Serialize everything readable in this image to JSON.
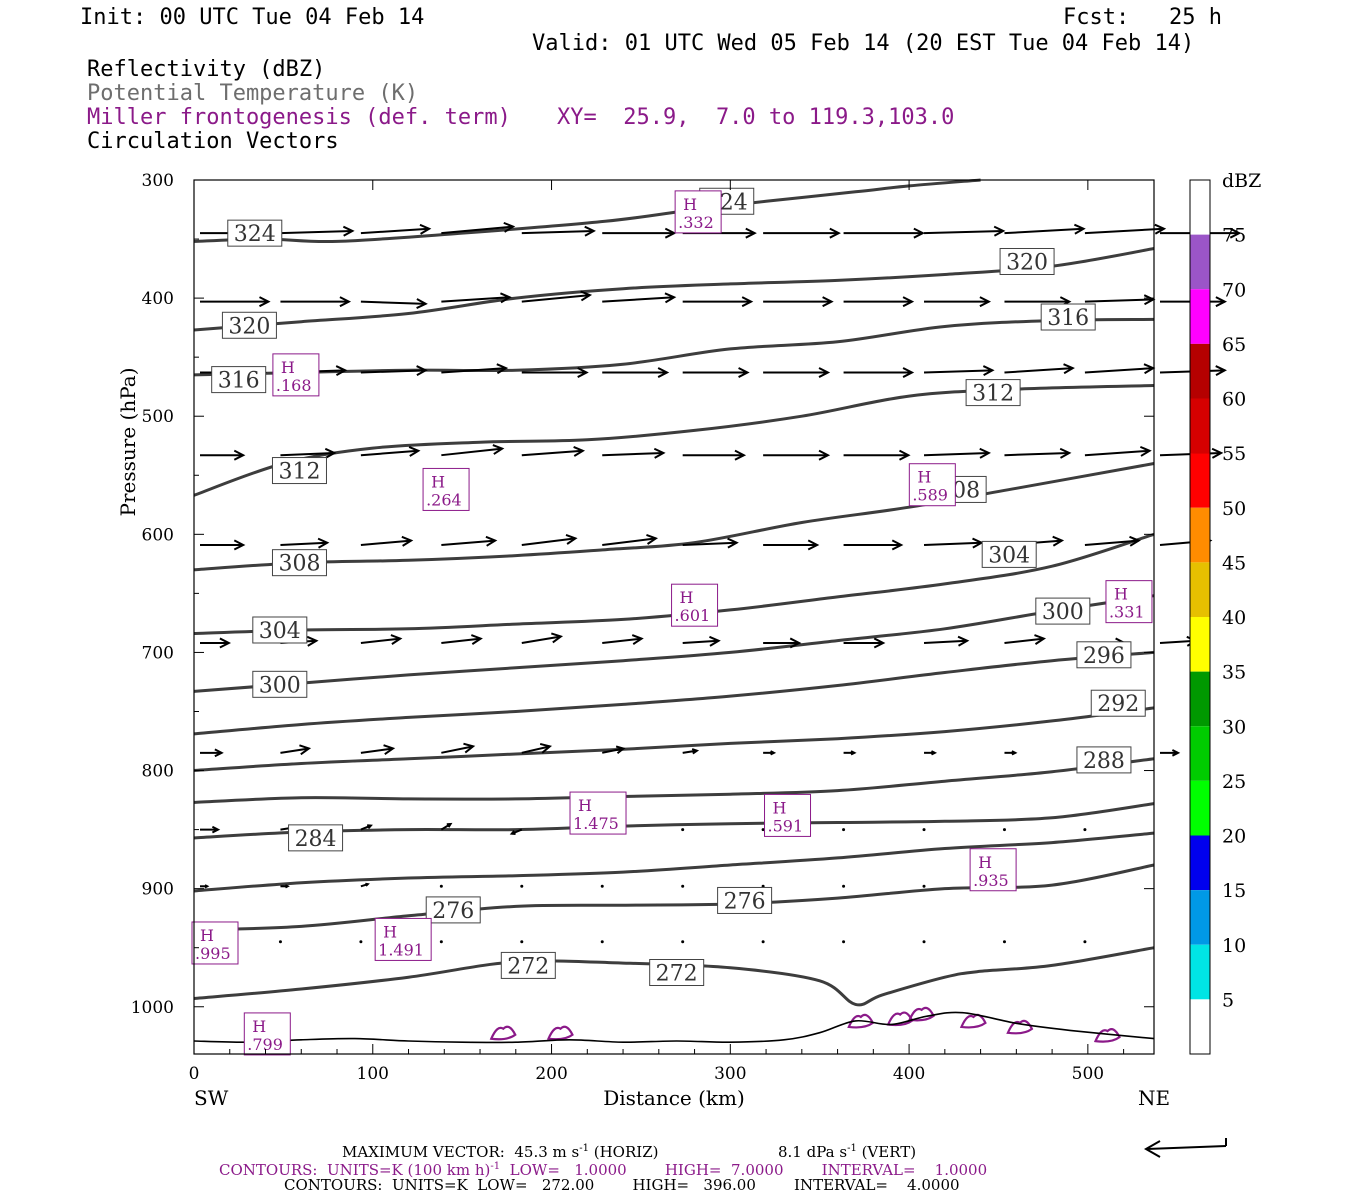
{
  "header": {
    "init": "Init: 00 UTC Tue 04 Feb 14",
    "fcst": "Fcst:   25 h",
    "valid": "Valid: 01 UTC Wed 05 Feb 14 (20 EST Tue 04 Feb 14)",
    "fields": [
      {
        "label": "Reflectivity (dBZ)"
      },
      {
        "label": "Potential Temperature (K)"
      },
      {
        "label": "Miller frontogenesis (def. term)"
      },
      {
        "label": "Circulation Vectors"
      }
    ],
    "xy": "XY=  25.9,  7.0 to 119.3,103.0"
  },
  "colors": {
    "theta": "#3d3d3d",
    "frontogenesis": "#8b1a89",
    "vector": "#000000"
  },
  "chart_data": {
    "type": "cross-section",
    "xlabel": "Distance (km)",
    "ylabel": "Pressure (hPa)",
    "xlim": [
      0,
      537
    ],
    "ylim": [
      300,
      1040
    ],
    "x_ticks": [
      "0",
      "100",
      "200",
      "300",
      "400",
      "500"
    ],
    "y_ticks": [
      "300",
      "400",
      "500",
      "600",
      "700",
      "800",
      "900",
      "1000"
    ],
    "x_end_labels": {
      "left": "SW",
      "right": "NE"
    },
    "theta_contours": [
      {
        "value": 324,
        "x": [
          0,
          40,
          80,
          150,
          230,
          280,
          320,
          370,
          400,
          440
        ],
        "p": [
          352,
          350,
          352,
          345,
          335,
          325,
          318,
          310,
          305,
          300
        ]
      },
      {
        "value": 320,
        "x": [
          0,
          60,
          120,
          180,
          240,
          300,
          360,
          420,
          480,
          537
        ],
        "p": [
          427,
          420,
          413,
          400,
          392,
          388,
          385,
          380,
          373,
          358
        ]
      },
      {
        "value": 316,
        "x": [
          0,
          60,
          120,
          180,
          240,
          300,
          360,
          420,
          480,
          537
        ],
        "p": [
          465,
          463,
          461,
          461,
          456,
          443,
          437,
          424,
          419,
          418
        ]
      },
      {
        "value": 312,
        "x": [
          0,
          50,
          100,
          160,
          220,
          280,
          340,
          400,
          460,
          537
        ],
        "p": [
          567,
          540,
          527,
          522,
          520,
          512,
          500,
          483,
          477,
          474
        ]
      },
      {
        "value": 308,
        "x": [
          0,
          60,
          120,
          180,
          230,
          280,
          340,
          400,
          460,
          537
        ],
        "p": [
          630,
          624,
          622,
          618,
          613,
          607,
          590,
          577,
          561,
          540
        ]
      },
      {
        "value": 304,
        "x": [
          0,
          60,
          120,
          180,
          240,
          300,
          360,
          420,
          480,
          537
        ],
        "p": [
          684,
          681,
          680,
          676,
          672,
          664,
          653,
          642,
          627,
          600
        ]
      },
      {
        "value": 300,
        "x": [
          0,
          60,
          120,
          180,
          240,
          300,
          360,
          420,
          480,
          537
        ],
        "p": [
          733,
          726,
          719,
          713,
          707,
          700,
          690,
          680,
          665,
          652
        ]
      },
      {
        "value": 296,
        "x": [
          0,
          60,
          120,
          180,
          240,
          300,
          360,
          420,
          480,
          537
        ],
        "p": [
          769,
          761,
          755,
          750,
          744,
          737,
          728,
          717,
          707,
          700
        ]
      },
      {
        "value": 292,
        "x": [
          0,
          60,
          120,
          180,
          240,
          300,
          360,
          420,
          480,
          537
        ],
        "p": [
          800,
          794,
          790,
          786,
          782,
          777,
          773,
          767,
          758,
          747
        ]
      },
      {
        "value": 288,
        "x": [
          0,
          60,
          120,
          180,
          240,
          300,
          360,
          420,
          480,
          537
        ],
        "p": [
          827,
          823,
          824,
          824,
          822,
          820,
          817,
          809,
          801,
          790
        ]
      },
      {
        "value": 284,
        "x": [
          0,
          60,
          120,
          180,
          240,
          300,
          360,
          420,
          480,
          537
        ],
        "p": [
          857,
          852,
          850,
          850,
          847,
          845,
          844,
          843,
          840,
          828
        ]
      },
      {
        "value": 280,
        "x": [
          0,
          60,
          120,
          180,
          240,
          300,
          360,
          420,
          480,
          537
        ],
        "p": [
          902,
          895,
          891,
          889,
          886,
          880,
          874,
          866,
          861,
          853
        ]
      },
      {
        "value": 276,
        "x": [
          0,
          60,
          120,
          180,
          240,
          300,
          360,
          420,
          480,
          537
        ],
        "p": [
          935,
          932,
          923,
          915,
          914,
          913,
          908,
          900,
          897,
          880
        ]
      },
      {
        "value": 272,
        "x": [
          0,
          60,
          120,
          180,
          240,
          300,
          350,
          370,
          385,
          420,
          440,
          480,
          537
        ],
        "p": [
          993,
          985,
          975,
          962,
          963,
          967,
          978,
          998,
          990,
          975,
          970,
          965,
          950
        ]
      }
    ],
    "theta_labels": [
      {
        "text": "324",
        "x": 34,
        "p": 345
      },
      {
        "text": "324",
        "x": 298,
        "p": 318
      },
      {
        "text": "320",
        "x": 31,
        "p": 423
      },
      {
        "text": "320",
        "x": 466,
        "p": 369
      },
      {
        "text": "316",
        "x": 25,
        "p": 469
      },
      {
        "text": "316",
        "x": 489,
        "p": 416
      },
      {
        "text": "312",
        "x": 59,
        "p": 546
      },
      {
        "text": "312",
        "x": 447,
        "p": 480
      },
      {
        "text": "308",
        "x": 59,
        "p": 624
      },
      {
        "text": "308",
        "x": 428,
        "p": 562
      },
      {
        "text": "304",
        "x": 48,
        "p": 681
      },
      {
        "text": "304",
        "x": 456,
        "p": 617
      },
      {
        "text": "300",
        "x": 48,
        "p": 727
      },
      {
        "text": "300",
        "x": 486,
        "p": 665
      },
      {
        "text": "296",
        "x": 509,
        "p": 702
      },
      {
        "text": "292",
        "x": 517,
        "p": 743
      },
      {
        "text": "288",
        "x": 509,
        "p": 791
      },
      {
        "text": "284",
        "x": 68,
        "p": 857
      },
      {
        "text": "276",
        "x": 145,
        "p": 918
      },
      {
        "text": "276",
        "x": 308,
        "p": 910
      },
      {
        "text": "272",
        "x": 187,
        "p": 965
      },
      {
        "text": "272",
        "x": 270,
        "p": 971
      }
    ],
    "frontogenesis_maxima": [
      {
        "label": "H",
        "value": ".332",
        "x": 282,
        "p": 327
      },
      {
        "label": "H",
        "value": ".168",
        "x": 57,
        "p": 465
      },
      {
        "label": "H",
        "value": ".264",
        "x": 141,
        "p": 562
      },
      {
        "label": "H",
        "value": ".589",
        "x": 413,
        "p": 558
      },
      {
        "label": "H",
        "value": ".601",
        "x": 280,
        "p": 660
      },
      {
        "label": "H",
        "value": ".331",
        "x": 523,
        "p": 657
      },
      {
        "label": "H",
        "value": "1.475",
        "x": 226,
        "p": 836
      },
      {
        "label": "H",
        "value": ".591",
        "x": 332,
        "p": 838
      },
      {
        "label": "H",
        "value": ".935",
        "x": 447,
        "p": 884
      },
      {
        "label": "H",
        "value": "1.491",
        "x": 117,
        "p": 943
      },
      {
        "label": "H",
        "value": ".995",
        "x": 7,
        "p": 946
      },
      {
        "label": "H",
        "value": ".799",
        "x": 41,
        "p": 1023
      }
    ],
    "vector_rows": [
      {
        "p": 345,
        "x": [
          0,
          45,
          90,
          135,
          180,
          225,
          270,
          315,
          360,
          405,
          450,
          495,
          537
        ],
        "u": [
          42,
          40,
          38,
          40,
          40,
          40,
          40,
          42,
          44,
          44,
          44,
          44,
          44
        ],
        "w": [
          0,
          1,
          2,
          3,
          1,
          0,
          0,
          0,
          0,
          1,
          2,
          2,
          0
        ]
      },
      {
        "p": 403,
        "x": [
          0,
          45,
          90,
          135,
          180,
          225,
          270,
          315,
          360,
          405,
          450,
          495,
          537
        ],
        "u": [
          38,
          38,
          36,
          38,
          38,
          40,
          38,
          38,
          38,
          36,
          36,
          38,
          36
        ],
        "w": [
          0,
          0,
          -1,
          2,
          3,
          2,
          0,
          0,
          0,
          0,
          0,
          1,
          0
        ]
      },
      {
        "p": 463,
        "x": [
          0,
          45,
          90,
          135,
          180,
          225,
          270,
          315,
          360,
          405,
          450,
          495,
          537
        ],
        "u": [
          36,
          36,
          36,
          36,
          36,
          36,
          36,
          36,
          38,
          38,
          38,
          38,
          36
        ],
        "w": [
          0,
          1,
          1,
          2,
          0,
          0,
          0,
          0,
          0,
          1,
          2,
          2,
          1
        ]
      },
      {
        "p": 533,
        "x": [
          0,
          45,
          90,
          135,
          180,
          225,
          270,
          315,
          360,
          405,
          450,
          495,
          537
        ],
        "u": [
          24,
          30,
          32,
          34,
          34,
          34,
          34,
          36,
          36,
          36,
          36,
          36,
          34
        ],
        "w": [
          0,
          1,
          2,
          3,
          2,
          1,
          0,
          0,
          0,
          1,
          1,
          2,
          1
        ]
      },
      {
        "p": 609,
        "x": [
          0,
          45,
          90,
          135,
          180,
          225,
          270,
          315,
          360,
          405,
          450,
          495,
          537
        ],
        "u": [
          24,
          26,
          28,
          30,
          30,
          30,
          30,
          30,
          32,
          32,
          32,
          30,
          28
        ],
        "w": [
          0,
          1,
          2,
          2,
          3,
          3,
          1,
          0,
          0,
          1,
          2,
          2,
          2
        ]
      },
      {
        "p": 692,
        "x": [
          0,
          45,
          90,
          135,
          180,
          225,
          270,
          315,
          360,
          405,
          450,
          495,
          537
        ],
        "u": [
          16,
          20,
          22,
          22,
          22,
          22,
          20,
          20,
          22,
          24,
          22,
          22,
          20
        ],
        "w": [
          0,
          1,
          2,
          2,
          3,
          2,
          1,
          0,
          0,
          1,
          2,
          0,
          1
        ]
      },
      {
        "p": 785,
        "x": [
          0,
          45,
          90,
          135,
          180,
          225,
          270,
          315,
          360,
          405,
          450,
          495,
          537
        ],
        "u": [
          12,
          16,
          18,
          18,
          16,
          12,
          8,
          6,
          6,
          6,
          6,
          10,
          10
        ],
        "w": [
          0,
          2,
          2,
          3,
          3,
          2,
          1,
          0,
          0,
          0,
          0,
          0,
          0
        ]
      },
      {
        "p": 850,
        "x": [
          0,
          45,
          90,
          135,
          180,
          225,
          270,
          315,
          360,
          405,
          450,
          495
        ],
        "u": [
          10,
          8,
          6,
          6,
          -6,
          4,
          2,
          2,
          2,
          2,
          2,
          2
        ],
        "w": [
          0,
          1,
          2,
          3,
          -2,
          0,
          0,
          0,
          0,
          0,
          0,
          0
        ]
      },
      {
        "p": 898,
        "x": [
          0,
          45,
          90,
          135,
          180,
          225,
          270,
          315,
          360,
          405,
          450
        ],
        "u": [
          4,
          4,
          4,
          2,
          2,
          2,
          2,
          2,
          2,
          2,
          2
        ],
        "w": [
          0,
          0,
          1,
          2,
          0,
          0,
          0,
          0,
          0,
          0,
          0
        ]
      },
      {
        "p": 945,
        "x": [
          0,
          45,
          90,
          135,
          180,
          225,
          270,
          315,
          360,
          405,
          450,
          495
        ],
        "u": [
          2,
          2,
          2,
          2,
          2,
          2,
          2,
          2,
          2,
          2,
          2,
          2
        ],
        "w": [
          0,
          0,
          0,
          0,
          0,
          0,
          0,
          0,
          0,
          0,
          1,
          1
        ]
      }
    ],
    "terrain": {
      "x": [
        0,
        30,
        60,
        90,
        120,
        150,
        180,
        210,
        240,
        270,
        300,
        330,
        350,
        370,
        390,
        410,
        430,
        460,
        490,
        537
      ],
      "p": [
        1029,
        1030,
        1028,
        1027,
        1029,
        1030,
        1030,
        1028,
        1030,
        1029,
        1030,
        1028,
        1022,
        1012,
        1015,
        1008,
        1005,
        1014,
        1020,
        1027
      ]
    },
    "reflectivity_echoes": [
      {
        "x": 173,
        "p": 1022
      },
      {
        "x": 205,
        "p": 1022
      },
      {
        "x": 373,
        "p": 1012
      },
      {
        "x": 395,
        "p": 1010
      },
      {
        "x": 407,
        "p": 1006
      },
      {
        "x": 436,
        "p": 1012
      },
      {
        "x": 462,
        "p": 1017
      },
      {
        "x": 511,
        "p": 1024
      }
    ],
    "colorbar": {
      "title": "dBZ",
      "labels": [
        "5",
        "10",
        "15",
        "20",
        "25",
        "30",
        "35",
        "40",
        "45",
        "50",
        "55",
        "60",
        "65",
        "70",
        "75"
      ],
      "colors": [
        "#ffffff",
        "#00e5e5",
        "#0099e6",
        "#0000ee",
        "#00ff00",
        "#00cc00",
        "#009900",
        "#ffff00",
        "#e6c000",
        "#ff8c00",
        "#ff0000",
        "#d60000",
        "#b50000",
        "#ff00ff",
        "#9b55c8",
        "#ffffff"
      ]
    }
  },
  "footer": {
    "max_vector": "MAXIMUM VECTOR:  45.3 m s",
    "max_vector_sup": "-1",
    "max_vector_h": " (HORIZ)",
    "vert": "8.1 dPa s",
    "vert_sup": "-1",
    "vert_tail": " (VERT)",
    "contours1_a": "CONTOURS:  UNITS=K (100 km h)",
    "contours1_sup": "-1",
    "contours1_b": "  LOW=   1.0000        HIGH=  7.0000        INTERVAL=    1.0000",
    "contours2": "CONTOURS:  UNITS=K  LOW=   272.00        HIGH=   396.00        INTERVAL=    4.0000"
  }
}
